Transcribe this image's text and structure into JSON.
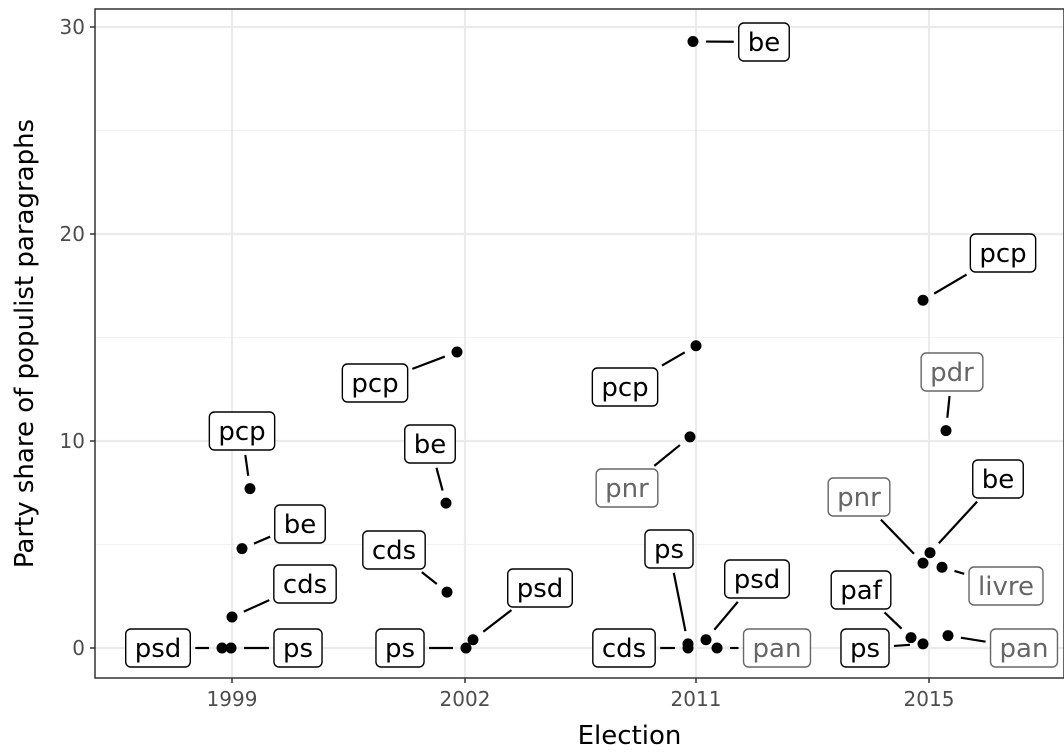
{
  "chart_data": {
    "type": "scatter",
    "xlabel": "Election",
    "ylabel": "Party share of populist paragraphs",
    "x_categories": [
      "1999",
      "2002",
      "2011",
      "2015"
    ],
    "ylim": [
      -1.5,
      30.8
    ],
    "y_ticks": [
      0,
      10,
      20,
      30
    ],
    "grid": true,
    "legend": "none",
    "colors": {
      "point": "#000000",
      "label_dark": "#000000",
      "label_grey": "#666666",
      "grid_major": "#ebebeb",
      "grid_minor": "#f2f2f2",
      "axis": "#333333"
    },
    "points": [
      {
        "election": "1999",
        "party": "psd",
        "value": 0.0,
        "group": "dark"
      },
      {
        "election": "1999",
        "party": "ps",
        "value": 0.0,
        "group": "dark"
      },
      {
        "election": "1999",
        "party": "cds",
        "value": 1.5,
        "group": "dark"
      },
      {
        "election": "1999",
        "party": "be",
        "value": 4.8,
        "group": "dark"
      },
      {
        "election": "1999",
        "party": "pcp",
        "value": 7.7,
        "group": "dark"
      },
      {
        "election": "2002",
        "party": "ps",
        "value": 0.0,
        "group": "dark"
      },
      {
        "election": "2002",
        "party": "psd",
        "value": 0.4,
        "group": "dark"
      },
      {
        "election": "2002",
        "party": "cds",
        "value": 2.7,
        "group": "dark"
      },
      {
        "election": "2002",
        "party": "be",
        "value": 7.0,
        "group": "dark"
      },
      {
        "election": "2002",
        "party": "pcp",
        "value": 14.3,
        "group": "dark"
      },
      {
        "election": "2011",
        "party": "cds",
        "value": 0.0,
        "group": "dark"
      },
      {
        "election": "2011",
        "party": "pan",
        "value": 0.0,
        "group": "grey"
      },
      {
        "election": "2011",
        "party": "ps",
        "value": 0.2,
        "group": "dark"
      },
      {
        "election": "2011",
        "party": "psd",
        "value": 0.4,
        "group": "dark"
      },
      {
        "election": "2011",
        "party": "pnr",
        "value": 10.2,
        "group": "grey"
      },
      {
        "election": "2011",
        "party": "pcp",
        "value": 14.6,
        "group": "dark"
      },
      {
        "election": "2011",
        "party": "be",
        "value": 29.3,
        "group": "dark"
      },
      {
        "election": "2015",
        "party": "ps",
        "value": 0.2,
        "group": "dark"
      },
      {
        "election": "2015",
        "party": "paf",
        "value": 0.5,
        "group": "dark"
      },
      {
        "election": "2015",
        "party": "pan",
        "value": 0.6,
        "group": "grey"
      },
      {
        "election": "2015",
        "party": "livre",
        "value": 3.9,
        "group": "grey"
      },
      {
        "election": "2015",
        "party": "pnr",
        "value": 4.1,
        "group": "grey"
      },
      {
        "election": "2015",
        "party": "be",
        "value": 4.6,
        "group": "dark"
      },
      {
        "election": "2015",
        "party": "pdr",
        "value": 10.5,
        "group": "grey"
      },
      {
        "election": "2015",
        "party": "pcp",
        "value": 16.8,
        "group": "dark"
      }
    ]
  }
}
